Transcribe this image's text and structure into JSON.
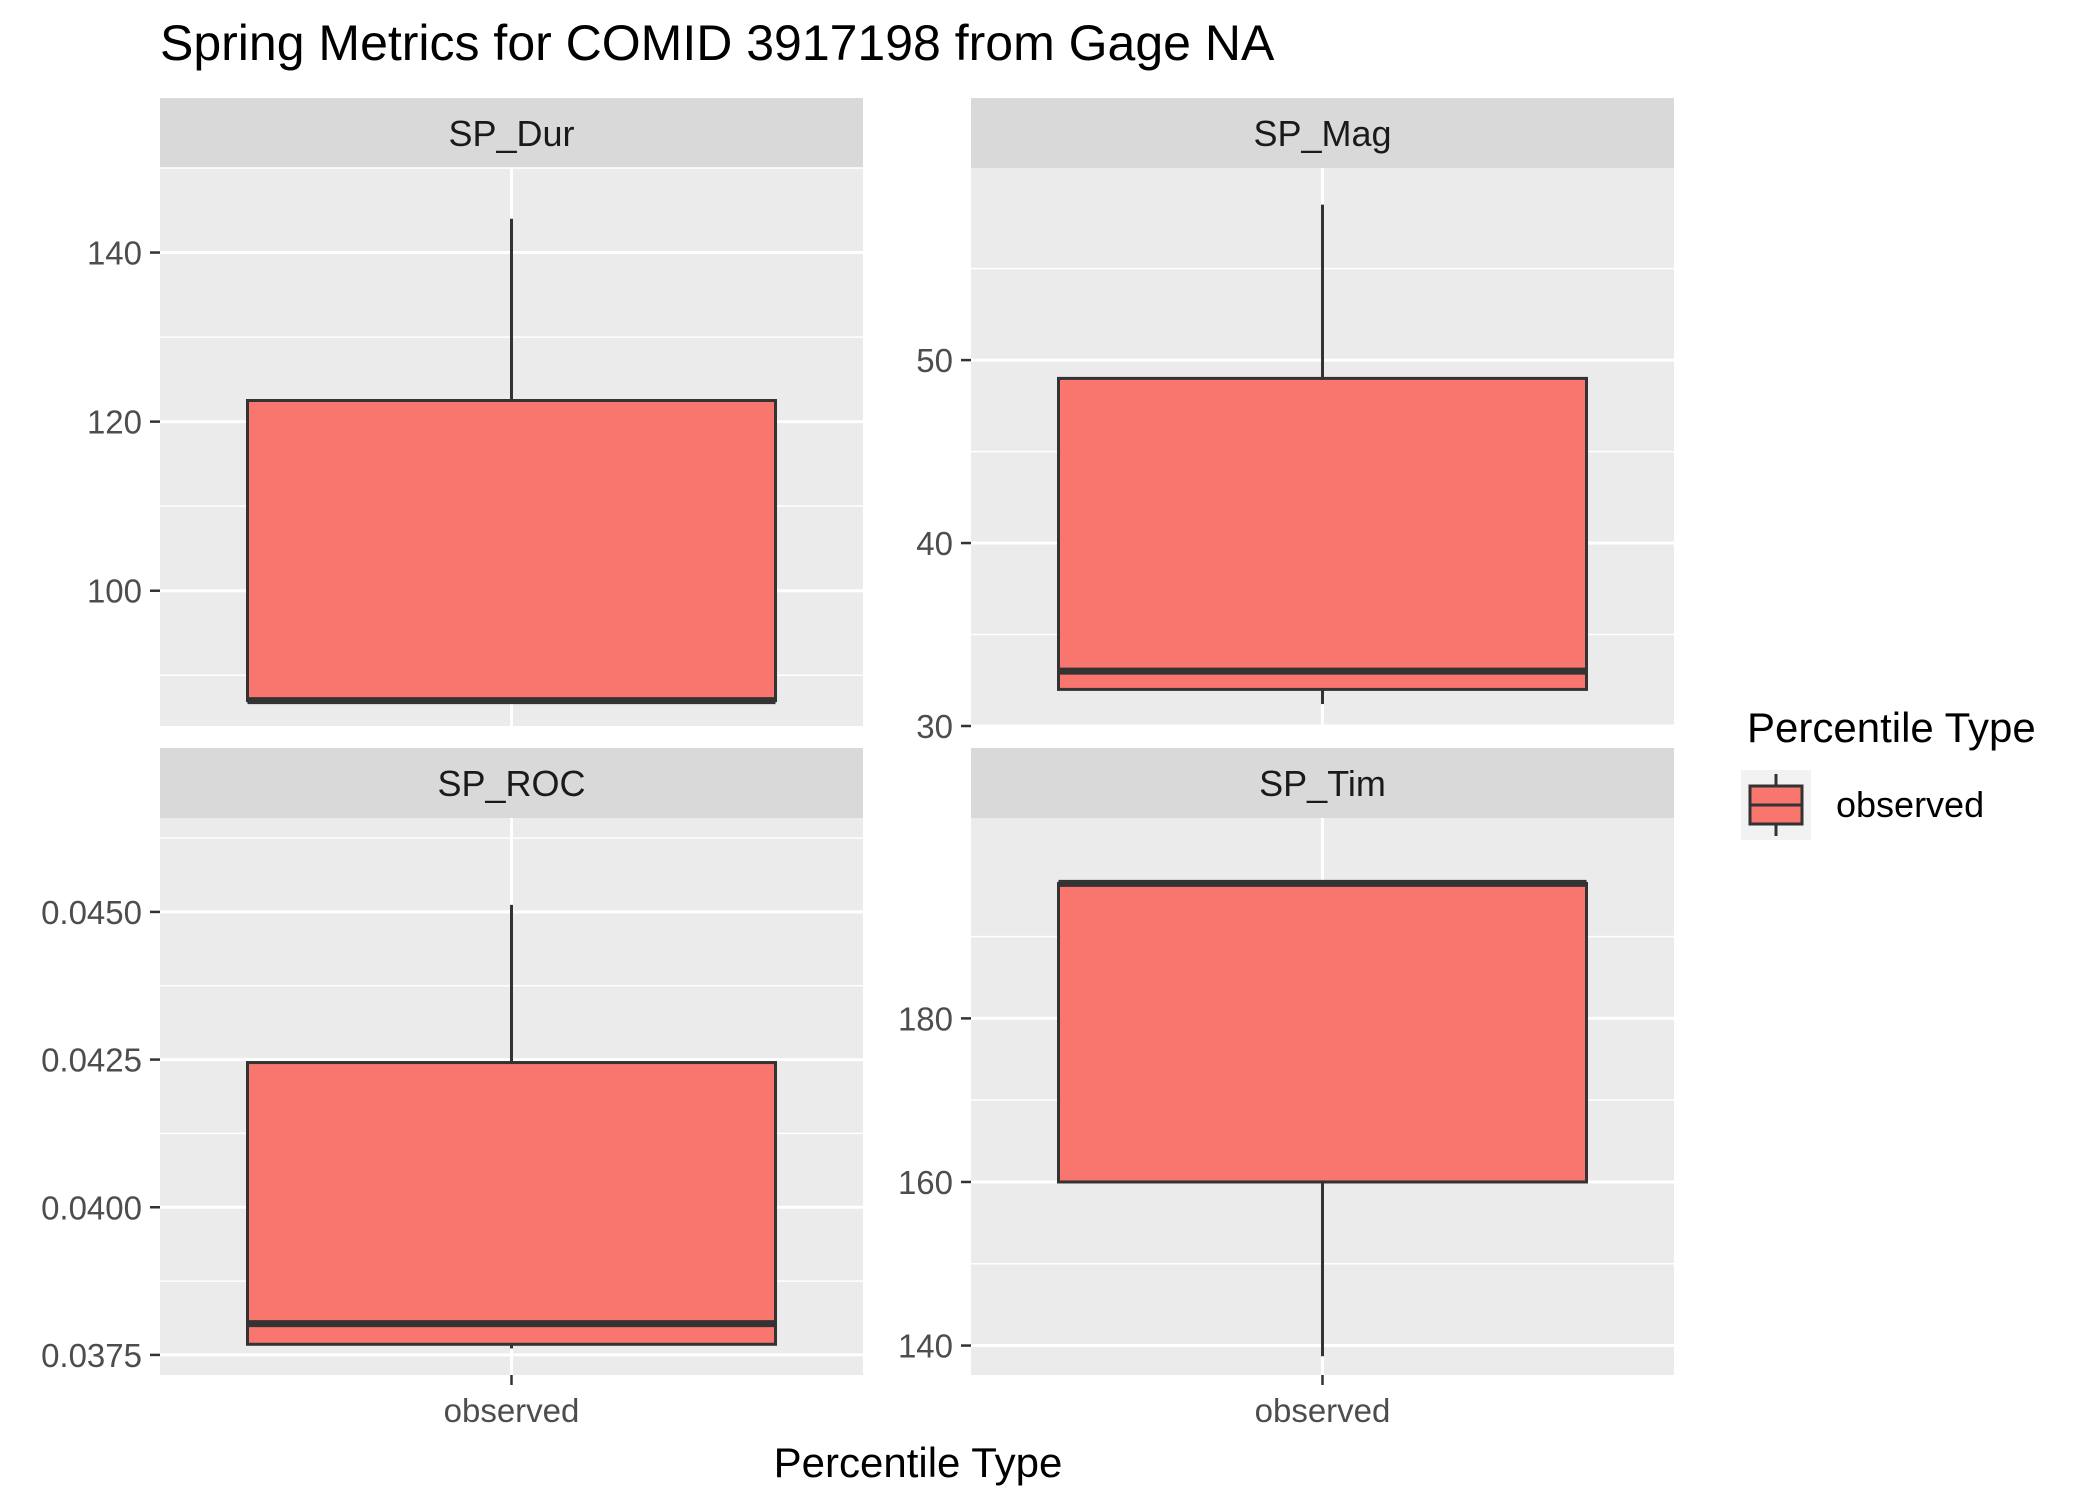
{
  "chart_data": {
    "type": "boxplot",
    "title": "Spring Metrics for COMID 3917198 from Gage NA",
    "xlabel": "Percentile Type",
    "ylabel": "",
    "categories": [
      "observed"
    ],
    "legend": {
      "title": "Percentile Type",
      "placement": "right",
      "entries": [
        {
          "label": "observed",
          "color": "#F8766D"
        }
      ]
    },
    "grid": true,
    "colors": {
      "box_fill": "#F8766D",
      "box_stroke": "#333333",
      "panel_bg": "#EBEBEB",
      "strip_bg": "#D9D9D9",
      "grid": "#FFFFFF"
    },
    "panels": [
      {
        "name": "SP_Dur",
        "ylim": [
          84,
          150
        ],
        "yticks": [
          "100",
          "120",
          "140"
        ],
        "ytick_values": [
          100,
          120,
          140
        ],
        "minor_ticks": [
          90,
          110,
          130,
          150
        ],
        "series": [
          {
            "name": "observed",
            "whisker_low": 87,
            "q1": 87,
            "median": 87,
            "q3": 122.5,
            "whisker_high": 144
          }
        ]
      },
      {
        "name": "SP_Mag",
        "ylim": [
          30.0,
          60.5
        ],
        "yticks": [
          "30",
          "40",
          "50"
        ],
        "ytick_values": [
          30,
          40,
          50
        ],
        "minor_ticks": [
          35,
          45,
          55
        ],
        "series": [
          {
            "name": "observed",
            "whisker_low": 31.2,
            "q1": 32.0,
            "median": 33.0,
            "q3": 49.0,
            "whisker_high": 58.5
          }
        ]
      },
      {
        "name": "SP_ROC",
        "ylim": [
          0.03716,
          0.04659
        ],
        "yticks": [
          "0.0375",
          "0.0400",
          "0.0425",
          "0.0450"
        ],
        "ytick_values": [
          0.0375,
          0.04,
          0.0425,
          0.045
        ],
        "minor_ticks": [
          0.03875,
          0.04125,
          0.04375,
          0.04625
        ],
        "series": [
          {
            "name": "observed",
            "whisker_low": 0.03761,
            "q1": 0.03768,
            "median": 0.03803,
            "q3": 0.04245,
            "whisker_high": 0.04512
          }
        ]
      },
      {
        "name": "SP_Tim",
        "ylim": [
          136.4,
          204.5
        ],
        "yticks": [
          "140",
          "160",
          "180"
        ],
        "ytick_values": [
          140,
          160,
          180
        ],
        "minor_ticks": [
          150,
          170,
          190
        ],
        "series": [
          {
            "name": "observed",
            "whisker_low": 138.7,
            "q1": 160,
            "median": 196.5,
            "q3": 196.5,
            "whisker_high": 196.5
          }
        ]
      }
    ]
  }
}
